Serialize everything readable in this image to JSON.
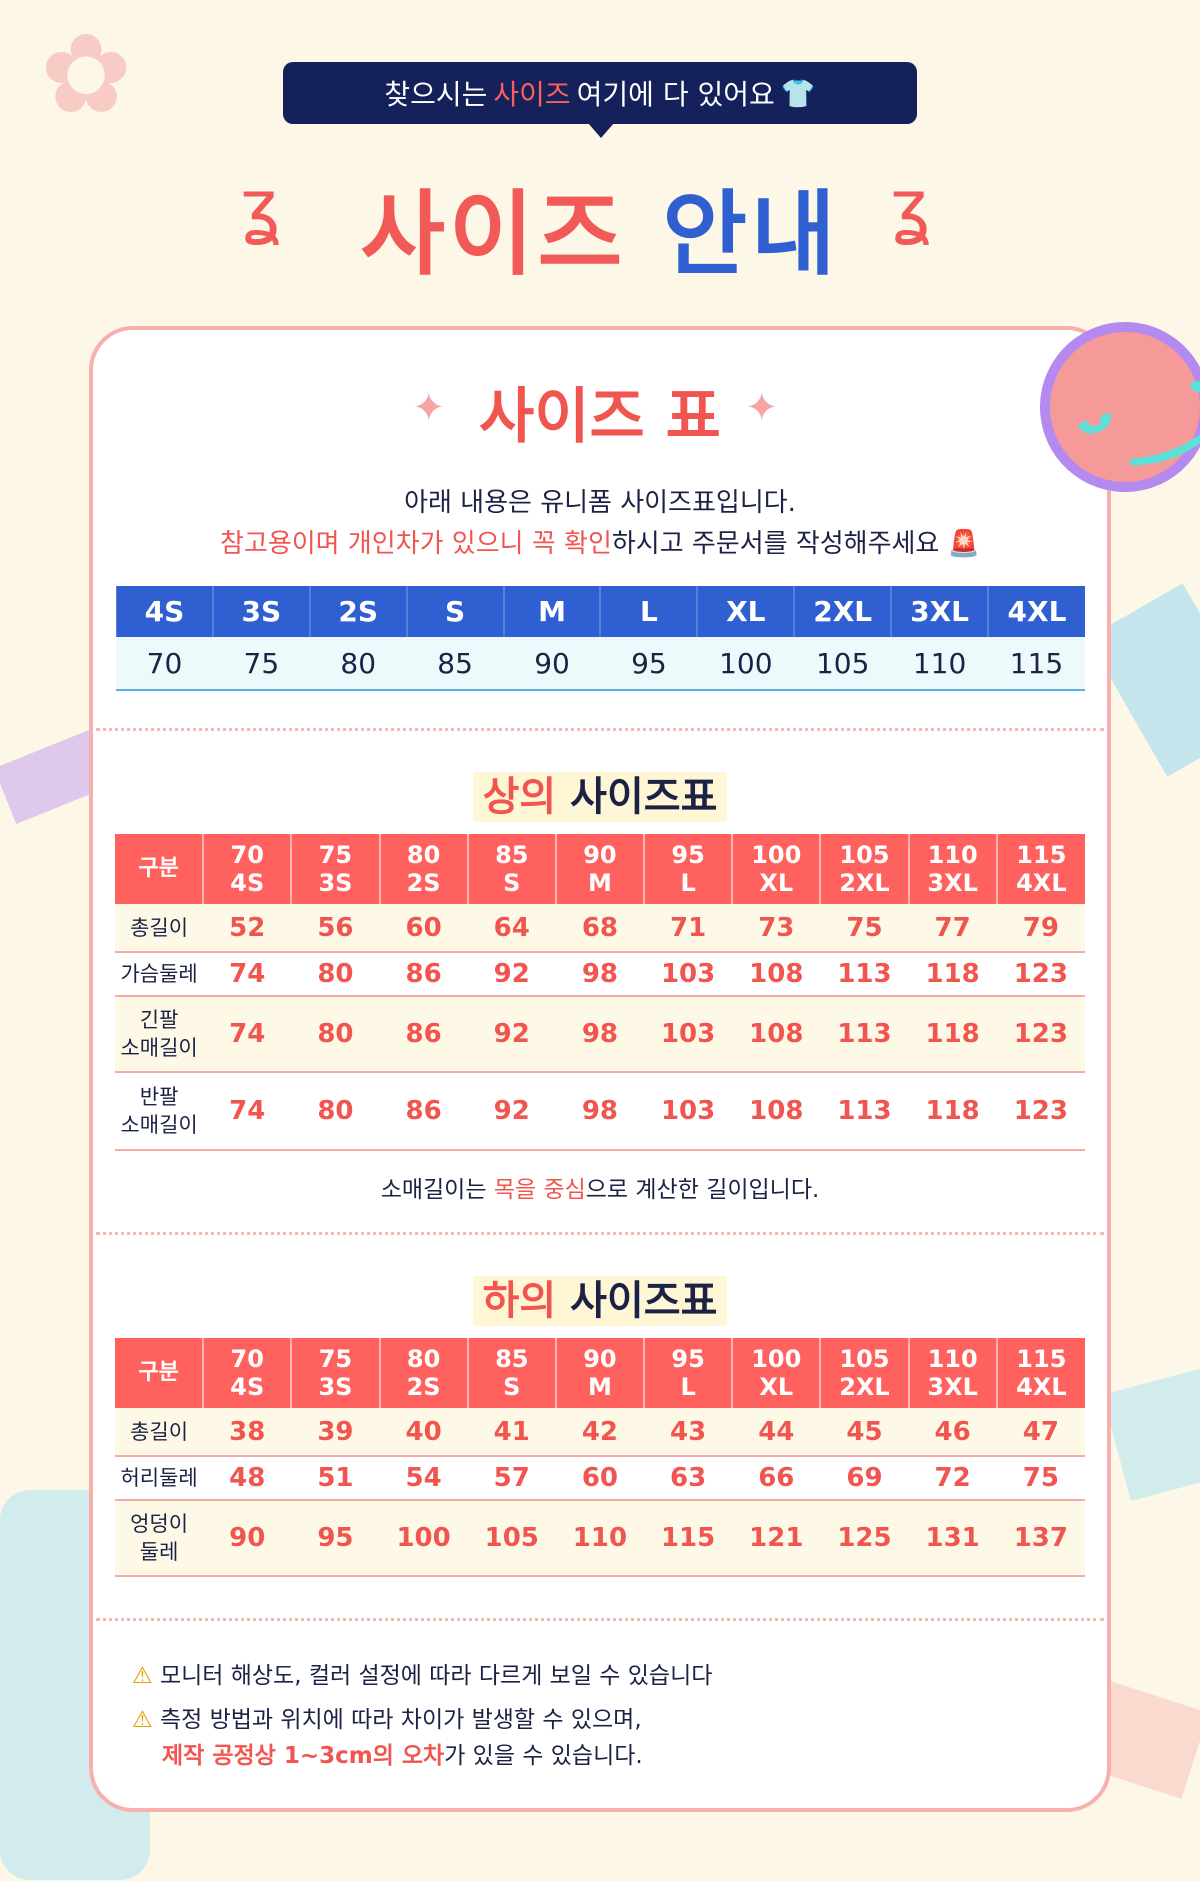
{
  "header": {
    "bubble_pre": "찾으시는 ",
    "bubble_hl": "사이즈",
    "bubble_post": " 여기에 다 있어요",
    "title_a": "사이즈",
    "title_b": "안내"
  },
  "size_chart": {
    "title": "사이즈 표",
    "desc1": "아래 내용은 유니폼 사이즈표입니다.",
    "desc2_hl": "참고용이며 개인차가 있으니 꼭 확인",
    "desc2_post": "하시고 주문서를 작성해주세요",
    "labels": [
      "4S",
      "3S",
      "2S",
      "S",
      "M",
      "L",
      "XL",
      "2XL",
      "3XL",
      "4XL"
    ],
    "values": [
      "70",
      "75",
      "80",
      "85",
      "90",
      "95",
      "100",
      "105",
      "110",
      "115"
    ]
  },
  "top": {
    "title_a": "상의",
    "title_b": "사이즈표",
    "corner": "구분",
    "rows": [
      {
        "label": [
          "총길이"
        ],
        "values": [
          "52",
          "56",
          "60",
          "64",
          "68",
          "71",
          "73",
          "75",
          "77",
          "79"
        ]
      },
      {
        "label": [
          "가슴둘레"
        ],
        "values": [
          "74",
          "80",
          "86",
          "92",
          "98",
          "103",
          "108",
          "113",
          "118",
          "123"
        ]
      },
      {
        "label": [
          "긴팔",
          "소매길이"
        ],
        "values": [
          "74",
          "80",
          "86",
          "92",
          "98",
          "103",
          "108",
          "113",
          "118",
          "123"
        ]
      },
      {
        "label": [
          "반팔",
          "소매길이"
        ],
        "values": [
          "74",
          "80",
          "86",
          "92",
          "98",
          "103",
          "108",
          "113",
          "118",
          "123"
        ]
      }
    ],
    "note_pre": "소매길이는 ",
    "note_hl": "목을 중심",
    "note_post": "으로 계산한 길이입니다."
  },
  "bottom": {
    "title_a": "하의",
    "title_b": "사이즈표",
    "corner": "구분",
    "rows": [
      {
        "label": [
          "총길이"
        ],
        "values": [
          "38",
          "39",
          "40",
          "41",
          "42",
          "43",
          "44",
          "45",
          "46",
          "47"
        ]
      },
      {
        "label": [
          "허리둘레"
        ],
        "values": [
          "48",
          "51",
          "54",
          "57",
          "60",
          "63",
          "66",
          "69",
          "72",
          "75"
        ]
      },
      {
        "label": [
          "엉덩이",
          "둘레"
        ],
        "values": [
          "90",
          "95",
          "100",
          "105",
          "110",
          "115",
          "121",
          "125",
          "131",
          "137"
        ]
      }
    ]
  },
  "warnings": {
    "w1": "모니터 해상도, 컬러 설정에 따라 다르게 보일 수 있습니다",
    "w2": "측정 방법과 위치에 따라 차이가 발생할 수 있으며,",
    "w3_hl": "제작 공정상 1~3cm의 오차",
    "w3_post": "가 있을 수 있습니다."
  },
  "icons": {
    "bubble": "tshirt-icon",
    "desc": "siren-icon",
    "warning": "warning-icon"
  },
  "colors": {
    "accent": "#f0554f",
    "blue": "#2f5fd0",
    "navy": "#14215a"
  }
}
